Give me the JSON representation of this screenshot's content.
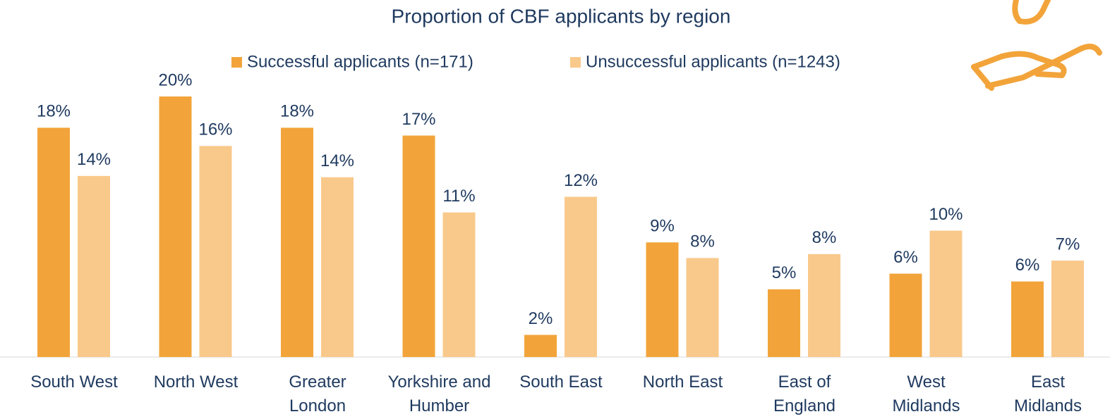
{
  "chart_data": {
    "type": "bar",
    "title": "Proportion of CBF applicants by region",
    "categories": [
      "South West",
      "North West",
      "Greater London",
      "Yorkshire and Humber",
      "South East",
      "North East",
      "East of England",
      "West Midlands",
      "East Midlands"
    ],
    "series": [
      {
        "name": "Successful applicants (n=171)",
        "color": "#f2a43a",
        "values": [
          17.6,
          20.0,
          17.6,
          17.0,
          1.7,
          8.8,
          5.2,
          6.4,
          5.8
        ],
        "value_labels": [
          "18%",
          "20%",
          "18%",
          "17%",
          "2%",
          "9%",
          "5%",
          "6%",
          "6%"
        ]
      },
      {
        "name": "Unsuccessful applicants (n=1243)",
        "color": "#f9c98b",
        "values": [
          13.9,
          16.2,
          13.8,
          11.1,
          12.3,
          7.6,
          7.9,
          9.7,
          7.4
        ],
        "value_labels": [
          "14%",
          "16%",
          "14%",
          "11%",
          "12%",
          "8%",
          "8%",
          "10%",
          "7%"
        ]
      }
    ],
    "ylim": [
      0,
      20
    ]
  }
}
